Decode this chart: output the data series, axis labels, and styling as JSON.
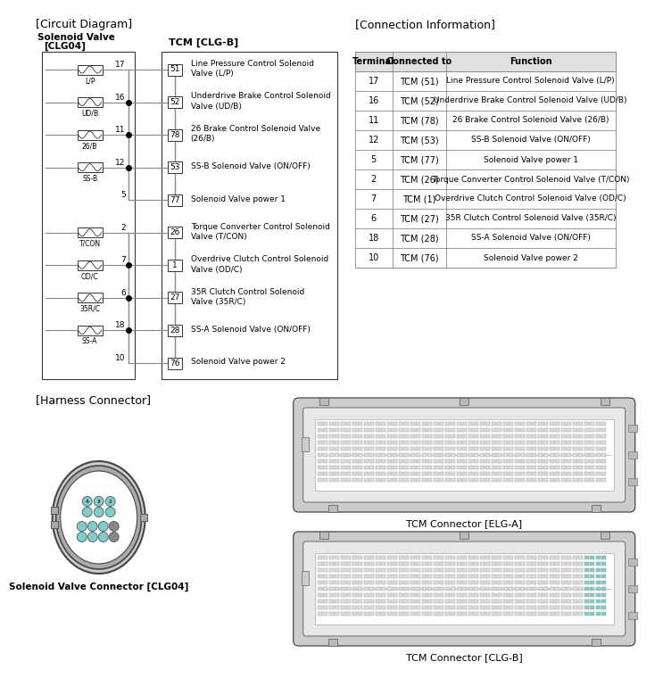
{
  "title_circuit": "[Circuit Diagram]",
  "title_connection": "[Connection Information]",
  "title_harness": "[Harness Connector]",
  "bg_color": "#ffffff",
  "left_pins": [
    17,
    16,
    11,
    12,
    5,
    2,
    7,
    6,
    18,
    10
  ],
  "right_pins": [
    51,
    52,
    78,
    53,
    77,
    26,
    1,
    27,
    28,
    76
  ],
  "comp_labels": [
    "L/P",
    "UD/B",
    "26/B",
    "SS-B",
    "",
    "T/CON",
    "OD/C",
    "35R/C",
    "SS-A",
    ""
  ],
  "has_coil": [
    true,
    true,
    true,
    true,
    false,
    true,
    true,
    true,
    true,
    false
  ],
  "has_dot": [
    false,
    true,
    true,
    true,
    false,
    false,
    true,
    true,
    true,
    false
  ],
  "descs": [
    "Line Pressure Control Solenoid\nValve (L/P)",
    "Underdrive Brake Control Solenoid\nValve (UD/B)",
    "26 Brake Control Solenoid Valve\n(26/B)",
    "SS-B Solenoid Valve (ON/OFF)",
    "Solenoid Valve power 1",
    "Torque Converter Control Solenoid\nValve (T/CON)",
    "Overdrive Clutch Control Solenoid\nValve (OD/C)",
    "35R Clutch Control Solenoid\nValve (35R/C)",
    "SS-A Solenoid Valve (ON/OFF)",
    "Solenoid Valve power 2"
  ],
  "table_headers": [
    "Terminal",
    "Connected to",
    "Function"
  ],
  "table_rows": [
    [
      "17",
      "TCM (51)",
      "Line Pressure Control Solenoid Valve (L/P)"
    ],
    [
      "16",
      "TCM (52)",
      "Underdrive Brake Control Solenoid Valve (UD/B)"
    ],
    [
      "11",
      "TCM (78)",
      "26 Brake Control Solenoid Valve (26/B)"
    ],
    [
      "12",
      "TCM (53)",
      "SS-B Solenoid Valve (ON/OFF)"
    ],
    [
      "5",
      "TCM (77)",
      "Solenoid Valve power 1"
    ],
    [
      "2",
      "TCM (26)",
      "Torque Converter Control Solenoid Valve (T/CON)"
    ],
    [
      "7",
      "TCM (1)",
      "Overdrive Clutch Control Solenoid Valve (OD/C)"
    ],
    [
      "6",
      "TCM (27)",
      "35R Clutch Control Solenoid Valve (35R/C)"
    ],
    [
      "18",
      "TCM (28)",
      "SS-A Solenoid Valve (ON/OFF)"
    ],
    [
      "10",
      "TCM (76)",
      "Solenoid Valve power 2"
    ]
  ],
  "solenoid_label": "Solenoid Valve Connector [CLG04]",
  "tcm_a_label": "TCM Connector [ELG-A]",
  "tcm_b_label": "TCM Connector [CLG-B]",
  "wire_color": "#888888",
  "dot_color": "#000000"
}
